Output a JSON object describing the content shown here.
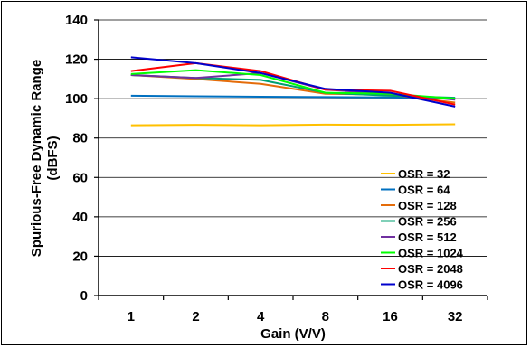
{
  "chart_data": {
    "type": "line",
    "title": "",
    "xlabel": "Gain (V/V)",
    "ylabel_line1": "Spurious-Free Dynamic Range",
    "ylabel_line2": "(dBFS)",
    "categories": [
      "1",
      "2",
      "4",
      "8",
      "16",
      "32"
    ],
    "ylim": [
      0,
      140
    ],
    "yticks": [
      0,
      20,
      40,
      60,
      80,
      100,
      120,
      140
    ],
    "grid": "horizontal",
    "legend_position": "bottom-right",
    "series": [
      {
        "name": "OSR = 32",
        "color": "#FFC000",
        "values": [
          86.5,
          86.7,
          86.5,
          86.8,
          86.7,
          87.0
        ]
      },
      {
        "name": "OSR = 64",
        "color": "#0070C0",
        "values": [
          101.5,
          101.2,
          101.0,
          100.8,
          100.6,
          100.0
        ]
      },
      {
        "name": "OSR = 128",
        "color": "#E46C0A",
        "values": [
          112.0,
          110.0,
          107.5,
          102.5,
          102.0,
          98.0
        ]
      },
      {
        "name": "OSR = 256",
        "color": "#00A070",
        "values": [
          112.0,
          110.5,
          109.5,
          103.0,
          101.5,
          100.5
        ]
      },
      {
        "name": "OSR = 512",
        "color": "#7030A0",
        "values": [
          112.0,
          110.5,
          113.0,
          104.5,
          102.5,
          99.5
        ]
      },
      {
        "name": "OSR = 1024",
        "color": "#00FF00",
        "values": [
          112.5,
          114.5,
          112.0,
          103.0,
          102.5,
          100.0
        ]
      },
      {
        "name": "OSR = 2048",
        "color": "#FF0000",
        "values": [
          114.0,
          118.0,
          114.0,
          104.5,
          104.0,
          97.0
        ]
      },
      {
        "name": "OSR = 4096",
        "color": "#0000CC",
        "values": [
          121.0,
          118.0,
          113.0,
          105.0,
          103.0,
          96.0
        ]
      }
    ]
  }
}
